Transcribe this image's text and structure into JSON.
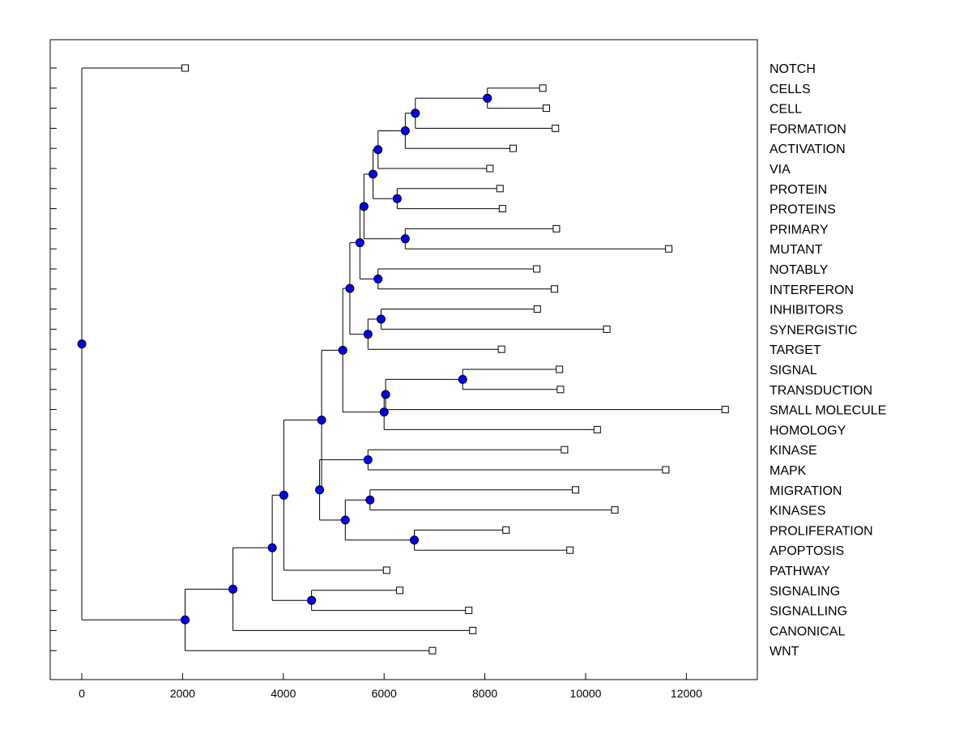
{
  "chart_data": {
    "type": "dendrogram",
    "title": "",
    "xlabel": "",
    "ylabel": "",
    "x_axis": {
      "ticks": [
        0,
        2000,
        4000,
        6000,
        8000,
        10000,
        12000
      ]
    },
    "leaves": [
      "NOTCH",
      "CELLS",
      "CELL",
      "FORMATION",
      "ACTIVATION",
      "VIA",
      "PROTEIN",
      "PROTEINS",
      "PRIMARY",
      "MUTANT",
      "NOTABLY",
      "INTERFERON",
      "INHIBITORS",
      "SYNERGISTIC",
      "TARGET",
      "SIGNAL",
      "TRANSDUCTION",
      "SMALL MOLECULE",
      "HOMOLOGY",
      "KINASE",
      "MAPK",
      "MIGRATION",
      "KINASES",
      "PROLIFERATION",
      "APOPTOSIS",
      "PATHWAY",
      "SIGNALING",
      "SIGNALLING",
      "CANONICAL",
      "WNT"
    ],
    "leaf_values": [
      2050,
      9150,
      9220,
      9400,
      8560,
      8100,
      8300,
      8350,
      9420,
      11650,
      9030,
      9380,
      9040,
      10420,
      8330,
      9480,
      9500,
      12770,
      10230,
      9580,
      11590,
      9800,
      10580,
      8420,
      9690,
      6050,
      6310,
      7680,
      7760,
      6960
    ],
    "nodes": [
      {
        "id": "n_cells_cell",
        "value": 8050,
        "children": [
          "L1",
          "L2"
        ]
      },
      {
        "id": "n_formation",
        "value": 6620,
        "children": [
          "n_cells_cell",
          "L3"
        ]
      },
      {
        "id": "n_activation",
        "value": 6420,
        "children": [
          "n_formation",
          "L4"
        ]
      },
      {
        "id": "n_via",
        "value": 5880,
        "children": [
          "n_activation",
          "L5"
        ]
      },
      {
        "id": "n_proteins",
        "value": 6260,
        "children": [
          "L6",
          "L7"
        ]
      },
      {
        "id": "n_protein_group",
        "value": 5780,
        "children": [
          "n_via",
          "n_proteins"
        ]
      },
      {
        "id": "n_primary_mutant",
        "value": 6420,
        "children": [
          "L8",
          "L9"
        ]
      },
      {
        "id": "n_upper",
        "value": 5600,
        "children": [
          "n_protein_group",
          "n_primary_mutant"
        ]
      },
      {
        "id": "n_notably",
        "value": 5880,
        "children": [
          "L10",
          "L11"
        ]
      },
      {
        "id": "n_upper2",
        "value": 5520,
        "children": [
          "n_upper",
          "n_notably"
        ]
      },
      {
        "id": "n_inhibitors",
        "value": 5940,
        "children": [
          "L12",
          "L13"
        ]
      },
      {
        "id": "n_target",
        "value": 5680,
        "children": [
          "n_inhibitors",
          "L14"
        ]
      },
      {
        "id": "n_upper3",
        "value": 5320,
        "children": [
          "n_upper2",
          "n_target"
        ]
      },
      {
        "id": "n_signal",
        "value": 7560,
        "children": [
          "L15",
          "L16"
        ]
      },
      {
        "id": "n_smallmol",
        "value": 6030,
        "children": [
          "n_signal",
          "L17"
        ]
      },
      {
        "id": "n_homology",
        "value": 6000,
        "children": [
          "n_smallmol",
          "L18"
        ]
      },
      {
        "id": "n_upper4",
        "value": 5180,
        "children": [
          "n_upper3",
          "n_homology"
        ]
      },
      {
        "id": "n_kinase_mapk",
        "value": 5680,
        "children": [
          "L19",
          "L20"
        ]
      },
      {
        "id": "n_migration",
        "value": 5720,
        "children": [
          "L21",
          "L22"
        ]
      },
      {
        "id": "n_apoptosis",
        "value": 6600,
        "children": [
          "L23",
          "L24"
        ]
      },
      {
        "id": "n_mig_apo",
        "value": 5230,
        "children": [
          "n_migration",
          "n_apoptosis"
        ]
      },
      {
        "id": "n_mid",
        "value": 4720,
        "children": [
          "n_kinase_mapk",
          "n_mig_apo"
        ]
      },
      {
        "id": "n_top",
        "value": 4760,
        "children": [
          "n_upper4",
          "n_mid"
        ]
      },
      {
        "id": "n_pathway",
        "value": 4010,
        "children": [
          "n_top",
          "L25"
        ]
      },
      {
        "id": "n_signaling",
        "value": 4560,
        "children": [
          "L26",
          "L27"
        ]
      },
      {
        "id": "n_pathway_sig",
        "value": 3780,
        "children": [
          "n_pathway",
          "n_signaling"
        ]
      },
      {
        "id": "n_canonical",
        "value": 3000,
        "children": [
          "n_pathway_sig",
          "L28"
        ]
      },
      {
        "id": "n_wnt",
        "value": 2050,
        "children": [
          "n_canonical",
          "L29"
        ]
      },
      {
        "id": "root",
        "value": 0,
        "children": [
          "L0",
          "n_wnt"
        ]
      }
    ],
    "colors": {
      "node_fill": "#0000ff",
      "leaf_fill": "#ffffff",
      "line": "#000000"
    }
  }
}
